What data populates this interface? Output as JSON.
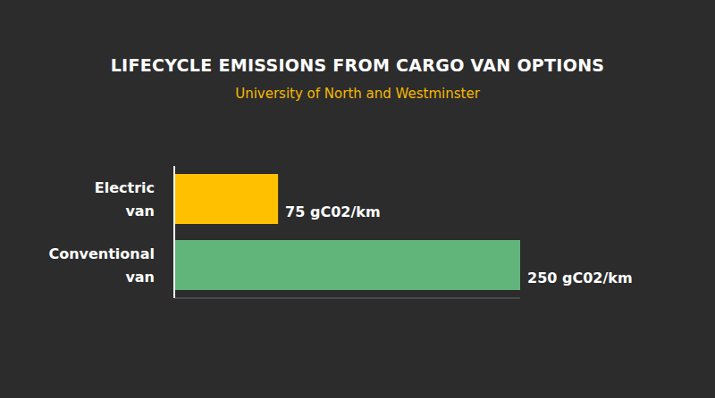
{
  "chart_data": {
    "type": "bar",
    "title": "LIFECYCLE EMISSIONS FROM CARGO VAN OPTIONS",
    "subtitle": "University of North and Westminster",
    "orientation": "horizontal",
    "categories": [
      "Electric van",
      "Conventional van"
    ],
    "values": [
      75,
      250
    ],
    "value_labels": [
      "75 gC02/km",
      "250 gC02/km"
    ],
    "colors": [
      "#FFC000",
      "#62B57A"
    ],
    "xlim": [
      0,
      250
    ],
    "xticks": [
      0,
      250
    ],
    "data_labels": true,
    "tick_labels": "y"
  }
}
